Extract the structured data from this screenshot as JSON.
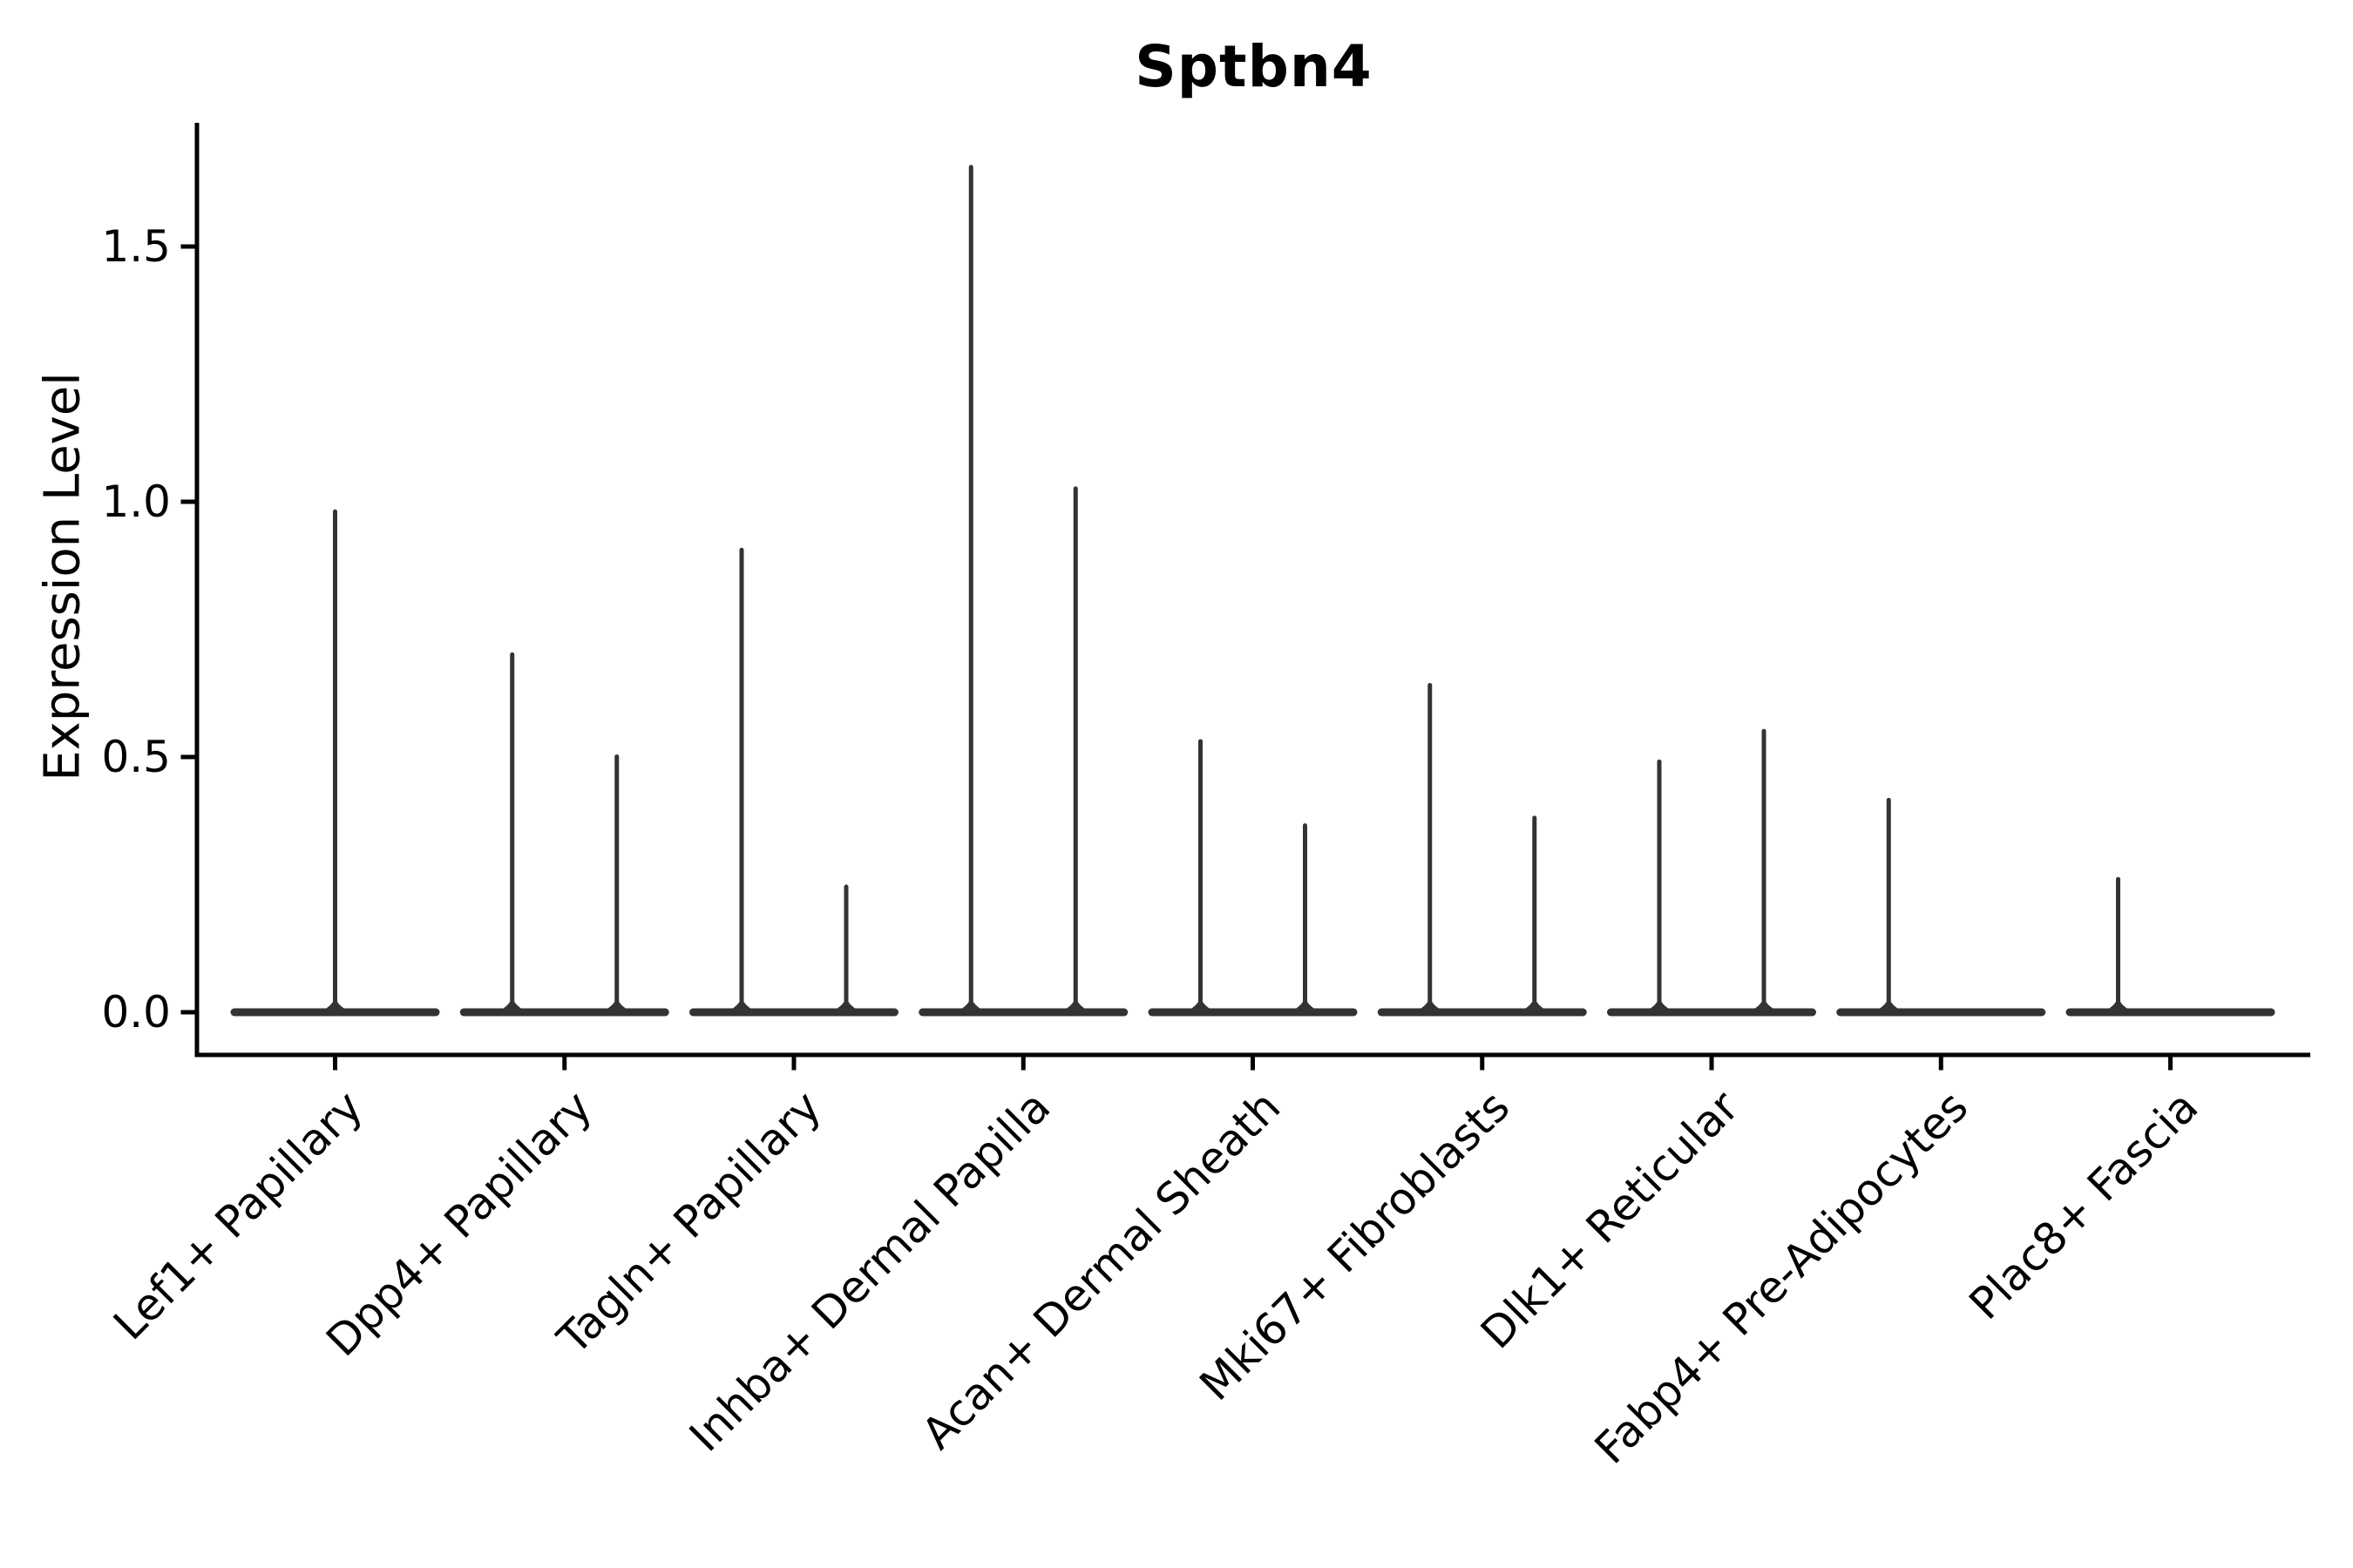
{
  "chart_data": {
    "type": "violin",
    "title": "Sptbn4",
    "ylabel": "Expression Level",
    "xlabel": "",
    "grid": false,
    "legend": null,
    "background_color": "#ffffff",
    "violin_color": "#333333",
    "spine_color": "#000000",
    "ytick_values": [
      0.0,
      0.5,
      1.0,
      1.5
    ],
    "ytick_labels": [
      "0.0",
      "0.5",
      "1.0",
      "1.5"
    ],
    "ylim": [
      -0.083,
      1.743
    ],
    "categories": [
      "Lef1+ Papillary",
      "Dpp4+ Papillary",
      "Tagln+ Papillary",
      "Inhba+ Dermal Papilla",
      "Acan+ Dermal Sheath",
      "Mki67+ Fibroblasts",
      "Dlk1+ Reticular",
      "Fabp4+ Pre-Adipocytes",
      "Plac8+ Fascia"
    ],
    "violin_max_expression": [
      [
        0.985
      ],
      [
        0.705,
        0.505
      ],
      [
        0.91,
        0.25
      ],
      [
        1.66,
        1.03
      ],
      [
        0.535,
        0.37
      ],
      [
        0.645,
        0.385
      ],
      [
        0.495,
        0.555
      ],
      [
        0.42,
        null
      ],
      [
        0.265,
        null
      ]
    ]
  }
}
